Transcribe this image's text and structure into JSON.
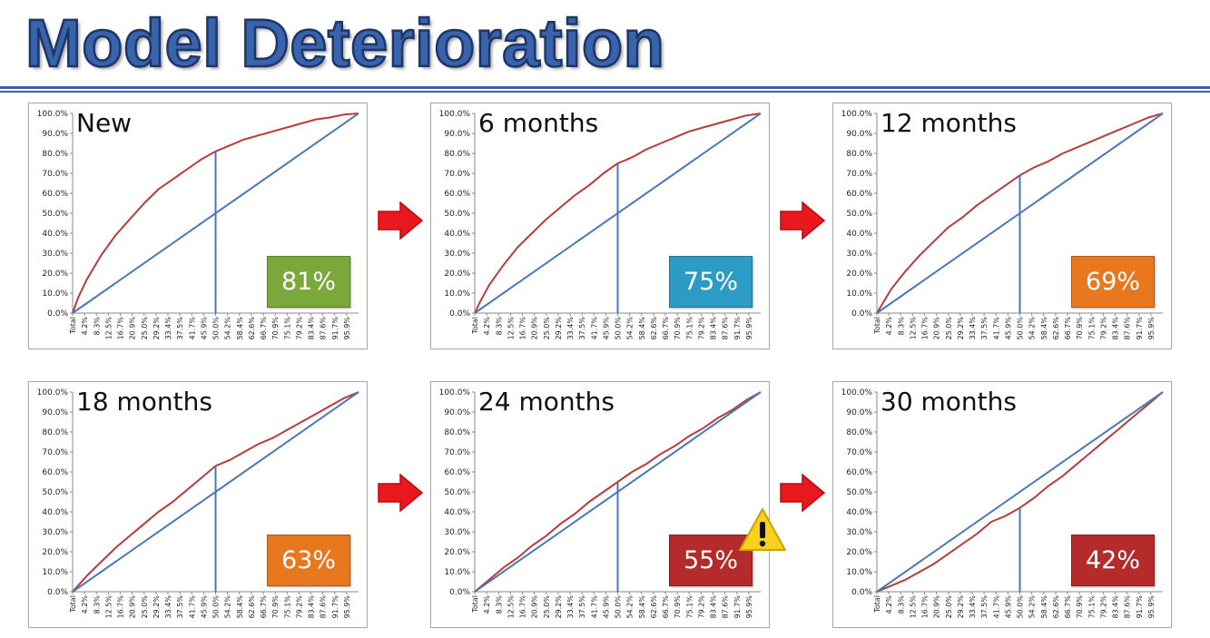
{
  "header": {
    "title": "Model Deterioration"
  },
  "colors": {
    "title_fill": "#3a63ad",
    "rule": "#3b5fa8",
    "model_curve": "#b83c3c",
    "baseline": "#4a78b7",
    "arrow": "#e8181e",
    "warning": "#f7d21c"
  },
  "icons": {
    "arrow": "red-right-arrow-icon",
    "warning": "warning-triangle-icon"
  },
  "chart_data": [
    {
      "type": "line",
      "title": "New",
      "badge": "81%",
      "badge_color": "#7aa83a",
      "warning": false,
      "x_ticks": [
        "Total",
        "4.2%",
        "8.3%",
        "12.5%",
        "16.7%",
        "20.9%",
        "25.0%",
        "29.2%",
        "33.4%",
        "37.5%",
        "41.7%",
        "45.9%",
        "50.0%",
        "54.2%",
        "58.4%",
        "62.6%",
        "66.7%",
        "70.9%",
        "75.1%",
        "79.2%",
        "83.4%",
        "87.6%",
        "91.7%",
        "95.9%"
      ],
      "y_ticks": [
        "0.0%",
        "10.0%",
        "20.0%",
        "30.0%",
        "40.0%",
        "50.0%",
        "60.0%",
        "70.0%",
        "80.0%",
        "90.0%",
        "100.0%"
      ],
      "xlim": [
        0,
        100
      ],
      "ylim": [
        0,
        100
      ],
      "vline_x": 50,
      "series": [
        {
          "values": [
            [
              0,
              0
            ],
            [
              2,
              8
            ],
            [
              5,
              17
            ],
            [
              10,
              29
            ],
            [
              15,
              39
            ],
            [
              20,
              47
            ],
            [
              25,
              55
            ],
            [
              30,
              62
            ],
            [
              35,
              67
            ],
            [
              40,
              72
            ],
            [
              45,
              77
            ],
            [
              50,
              81
            ],
            [
              55,
              84
            ],
            [
              60,
              87
            ],
            [
              65,
              89
            ],
            [
              70,
              91
            ],
            [
              75,
              93
            ],
            [
              80,
              95
            ],
            [
              85,
              97
            ],
            [
              90,
              98
            ],
            [
              95,
              99.5
            ],
            [
              100,
              100
            ]
          ]
        },
        {
          "values": [
            [
              0,
              0
            ],
            [
              100,
              100
            ]
          ]
        }
      ]
    },
    {
      "type": "line",
      "title": "6 months",
      "badge": "75%",
      "badge_color": "#2d9cc4",
      "warning": false,
      "x_ticks": [
        "Total",
        "4.2%",
        "8.3%",
        "12.5%",
        "16.7%",
        "20.9%",
        "25.0%",
        "29.2%",
        "33.4%",
        "37.5%",
        "41.7%",
        "45.9%",
        "50.0%",
        "54.2%",
        "58.4%",
        "62.6%",
        "66.7%",
        "70.9%",
        "75.1%",
        "79.2%",
        "83.4%",
        "87.6%",
        "91.7%",
        "95.9%"
      ],
      "y_ticks": [
        "0.0%",
        "10.0%",
        "20.0%",
        "30.0%",
        "40.0%",
        "50.0%",
        "60.0%",
        "70.0%",
        "80.0%",
        "90.0%",
        "100.0%"
      ],
      "xlim": [
        0,
        100
      ],
      "ylim": [
        0,
        100
      ],
      "vline_x": 50,
      "series": [
        {
          "values": [
            [
              0,
              0
            ],
            [
              2,
              6
            ],
            [
              5,
              14
            ],
            [
              10,
              24
            ],
            [
              15,
              33
            ],
            [
              20,
              40
            ],
            [
              25,
              47
            ],
            [
              30,
              53
            ],
            [
              35,
              59
            ],
            [
              40,
              64
            ],
            [
              45,
              70
            ],
            [
              50,
              75
            ],
            [
              55,
              78
            ],
            [
              60,
              82
            ],
            [
              65,
              85
            ],
            [
              70,
              88
            ],
            [
              75,
              91
            ],
            [
              80,
              93
            ],
            [
              85,
              95
            ],
            [
              90,
              97
            ],
            [
              95,
              99
            ],
            [
              100,
              100
            ]
          ]
        },
        {
          "values": [
            [
              0,
              0
            ],
            [
              100,
              100
            ]
          ]
        }
      ]
    },
    {
      "type": "line",
      "title": "12 months",
      "badge": "69%",
      "badge_color": "#e8781e",
      "warning": false,
      "x_ticks": [
        "Total",
        "4.2%",
        "8.3%",
        "12.5%",
        "16.7%",
        "20.9%",
        "25.0%",
        "29.2%",
        "33.4%",
        "37.5%",
        "41.7%",
        "45.9%",
        "50.0%",
        "54.2%",
        "58.4%",
        "62.6%",
        "66.7%",
        "70.9%",
        "75.1%",
        "79.2%",
        "83.4%",
        "87.6%",
        "91.7%",
        "95.9%"
      ],
      "y_ticks": [
        "0.0%",
        "10.0%",
        "20.0%",
        "30.0%",
        "40.0%",
        "50.0%",
        "60.0%",
        "70.0%",
        "80.0%",
        "90.0%",
        "100.0%"
      ],
      "xlim": [
        0,
        100
      ],
      "ylim": [
        0,
        100
      ],
      "vline_x": 50,
      "series": [
        {
          "values": [
            [
              0,
              0
            ],
            [
              5,
              12
            ],
            [
              10,
              21
            ],
            [
              15,
              29
            ],
            [
              20,
              36
            ],
            [
              25,
              43
            ],
            [
              30,
              48
            ],
            [
              35,
              54
            ],
            [
              40,
              59
            ],
            [
              45,
              64
            ],
            [
              50,
              69
            ],
            [
              55,
              73
            ],
            [
              60,
              76
            ],
            [
              65,
              80
            ],
            [
              70,
              83
            ],
            [
              75,
              86
            ],
            [
              80,
              89
            ],
            [
              85,
              92
            ],
            [
              90,
              95
            ],
            [
              95,
              98
            ],
            [
              100,
              100
            ]
          ]
        },
        {
          "values": [
            [
              0,
              0
            ],
            [
              100,
              100
            ]
          ]
        }
      ]
    },
    {
      "type": "line",
      "title": "18 months",
      "badge": "63%",
      "badge_color": "#e8781e",
      "warning": false,
      "x_ticks": [
        "Total",
        "4.2%",
        "8.3%",
        "12.5%",
        "16.7%",
        "20.9%",
        "25.0%",
        "29.2%",
        "33.4%",
        "37.5%",
        "41.7%",
        "45.9%",
        "50.0%",
        "54.2%",
        "58.4%",
        "62.6%",
        "66.7%",
        "70.9%",
        "75.1%",
        "79.2%",
        "83.4%",
        "87.6%",
        "91.7%",
        "95.9%"
      ],
      "y_ticks": [
        "0.0%",
        "10.0%",
        "20.0%",
        "30.0%",
        "40.0%",
        "50.0%",
        "60.0%",
        "70.0%",
        "80.0%",
        "90.0%",
        "100.0%"
      ],
      "xlim": [
        0,
        100
      ],
      "ylim": [
        0,
        100
      ],
      "vline_x": 50,
      "series": [
        {
          "values": [
            [
              0,
              0
            ],
            [
              5,
              8
            ],
            [
              10,
              15
            ],
            [
              15,
              22
            ],
            [
              20,
              28
            ],
            [
              25,
              34
            ],
            [
              30,
              40
            ],
            [
              35,
              45
            ],
            [
              40,
              51
            ],
            [
              45,
              57
            ],
            [
              50,
              63
            ],
            [
              55,
              66
            ],
            [
              60,
              70
            ],
            [
              65,
              74
            ],
            [
              70,
              77
            ],
            [
              75,
              81
            ],
            [
              80,
              85
            ],
            [
              85,
              89
            ],
            [
              90,
              93
            ],
            [
              95,
              97
            ],
            [
              100,
              100
            ]
          ]
        },
        {
          "values": [
            [
              0,
              0
            ],
            [
              100,
              100
            ]
          ]
        }
      ]
    },
    {
      "type": "line",
      "title": "24 months",
      "badge": "55%",
      "badge_color": "#b52b2b",
      "warning": true,
      "x_ticks": [
        "Total",
        "4.2%",
        "8.3%",
        "12.5%",
        "16.7%",
        "20.9%",
        "25.0%",
        "29.2%",
        "33.4%",
        "37.5%",
        "41.7%",
        "45.9%",
        "50.0%",
        "54.2%",
        "58.4%",
        "62.6%",
        "66.7%",
        "70.9%",
        "75.1%",
        "79.2%",
        "83.4%",
        "87.6%",
        "91.7%",
        "95.9%"
      ],
      "y_ticks": [
        "0.0%",
        "10.0%",
        "20.0%",
        "30.0%",
        "40.0%",
        "50.0%",
        "60.0%",
        "70.0%",
        "80.0%",
        "90.0%",
        "100.0%"
      ],
      "xlim": [
        0,
        100
      ],
      "ylim": [
        0,
        100
      ],
      "vline_x": 50,
      "series": [
        {
          "values": [
            [
              0,
              0
            ],
            [
              5,
              6
            ],
            [
              10,
              12
            ],
            [
              15,
              17
            ],
            [
              20,
              23
            ],
            [
              25,
              28
            ],
            [
              30,
              34
            ],
            [
              35,
              39
            ],
            [
              40,
              45
            ],
            [
              45,
              50
            ],
            [
              50,
              55
            ],
            [
              55,
              60
            ],
            [
              60,
              64
            ],
            [
              65,
              69
            ],
            [
              70,
              73
            ],
            [
              75,
              78
            ],
            [
              80,
              82
            ],
            [
              85,
              87
            ],
            [
              90,
              91
            ],
            [
              95,
              96
            ],
            [
              100,
              100
            ]
          ]
        },
        {
          "values": [
            [
              0,
              0
            ],
            [
              100,
              100
            ]
          ]
        }
      ]
    },
    {
      "type": "line",
      "title": "30 months",
      "badge": "42%",
      "badge_color": "#b52b2b",
      "warning": false,
      "x_ticks": [
        "Total",
        "4.2%",
        "8.3%",
        "12.5%",
        "16.7%",
        "20.9%",
        "25.0%",
        "29.2%",
        "33.4%",
        "37.5%",
        "41.7%",
        "45.9%",
        "50.0%",
        "54.2%",
        "58.4%",
        "62.6%",
        "66.7%",
        "70.9%",
        "75.1%",
        "79.2%",
        "83.4%",
        "87.6%",
        "91.7%",
        "95.9%"
      ],
      "y_ticks": [
        "0.0%",
        "10.0%",
        "20.0%",
        "30.0%",
        "40.0%",
        "50.0%",
        "60.0%",
        "70.0%",
        "80.0%",
        "90.0%",
        "100.0%"
      ],
      "xlim": [
        0,
        100
      ],
      "ylim": [
        0,
        100
      ],
      "vline_x": 50,
      "series": [
        {
          "values": [
            [
              0,
              0
            ],
            [
              5,
              3
            ],
            [
              10,
              6
            ],
            [
              15,
              10
            ],
            [
              20,
              14
            ],
            [
              25,
              19
            ],
            [
              30,
              24
            ],
            [
              35,
              29
            ],
            [
              40,
              35
            ],
            [
              45,
              38
            ],
            [
              50,
              42
            ],
            [
              55,
              47
            ],
            [
              60,
              53
            ],
            [
              65,
              58
            ],
            [
              70,
              64
            ],
            [
              75,
              70
            ],
            [
              80,
              76
            ],
            [
              85,
              82
            ],
            [
              90,
              88
            ],
            [
              95,
              94
            ],
            [
              100,
              100
            ]
          ]
        },
        {
          "values": [
            [
              0,
              0
            ],
            [
              100,
              100
            ]
          ]
        }
      ]
    }
  ]
}
